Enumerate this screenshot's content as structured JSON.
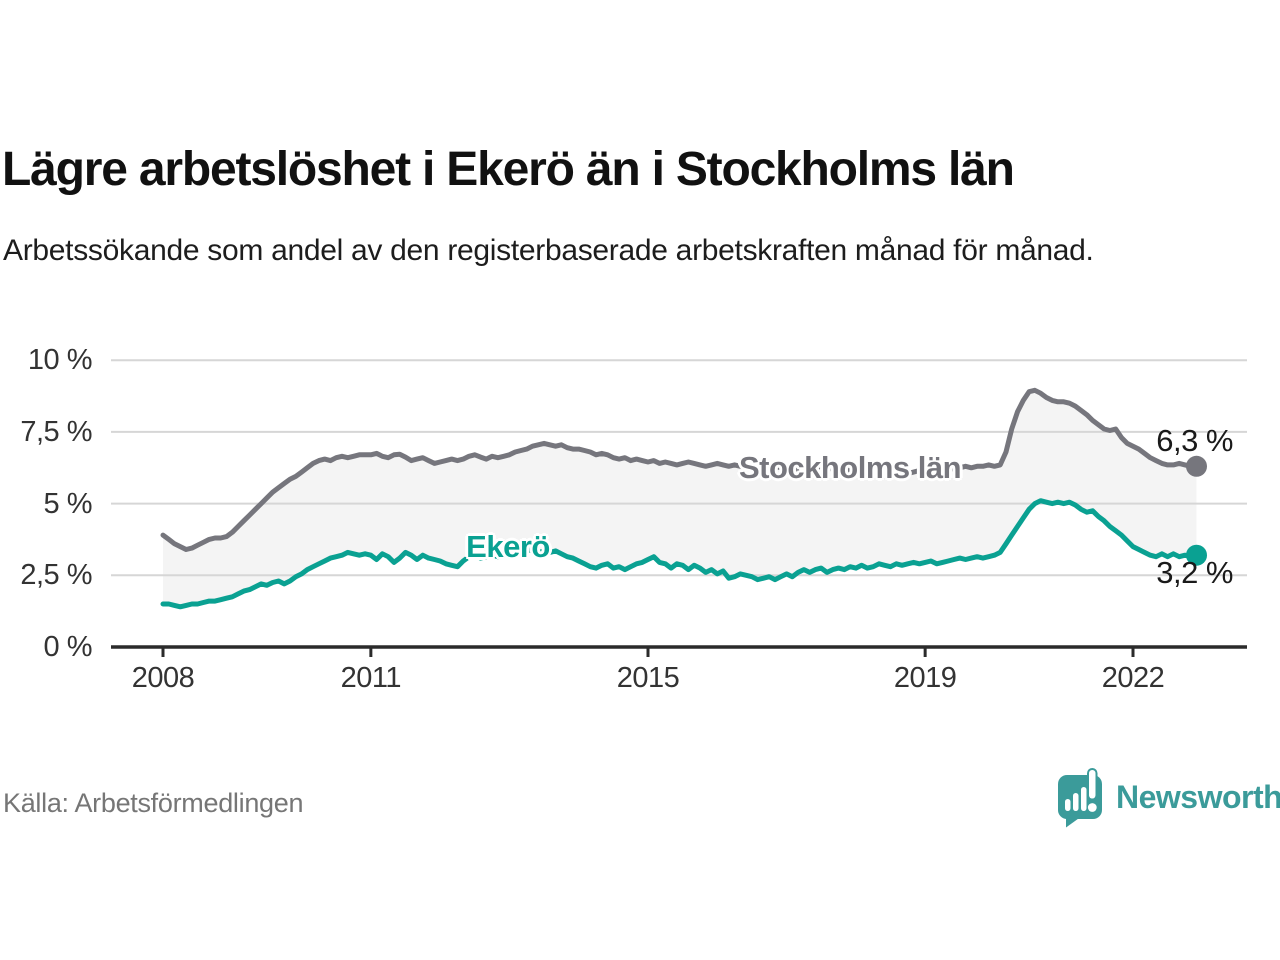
{
  "header": {
    "title": "Lägre arbetslöshet i Ekerö än i Stockholms län",
    "subtitle": "Arbetssökande som andel av den registerbaserade arbetskraften månad för månad."
  },
  "chart_data": {
    "type": "line",
    "x_unit": "month",
    "x_start": "2008-01",
    "x_end": "2022-12",
    "x_ticks": [
      2008,
      2011,
      2015,
      2019,
      2022
    ],
    "x_tick_labels": [
      "2008",
      "2011",
      "2015",
      "2019",
      "2022"
    ],
    "ylim": [
      0,
      10
    ],
    "y_ticks": [
      0,
      2.5,
      5,
      7.5,
      10
    ],
    "y_tick_labels": [
      "0 %",
      "2,5 %",
      "5 %",
      "7,5 %",
      "10 %"
    ],
    "grid": "horizontal",
    "band_between_series": true,
    "band_color": "#f4f4f4",
    "grid_color": "#d6d6d6",
    "axis_color": "#2b2b2b",
    "series": [
      {
        "name": "Stockholms län",
        "color": "#76767d",
        "end_label": "6,3 %",
        "values": [
          3.9,
          3.75,
          3.6,
          3.5,
          3.4,
          3.45,
          3.55,
          3.65,
          3.75,
          3.8,
          3.8,
          3.85,
          4.0,
          4.2,
          4.4,
          4.6,
          4.8,
          5.0,
          5.2,
          5.4,
          5.55,
          5.7,
          5.85,
          5.95,
          6.1,
          6.25,
          6.4,
          6.5,
          6.55,
          6.5,
          6.6,
          6.65,
          6.6,
          6.65,
          6.7,
          6.7,
          6.7,
          6.75,
          6.65,
          6.6,
          6.7,
          6.72,
          6.62,
          6.5,
          6.55,
          6.6,
          6.5,
          6.4,
          6.45,
          6.5,
          6.55,
          6.5,
          6.55,
          6.65,
          6.7,
          6.62,
          6.55,
          6.65,
          6.6,
          6.65,
          6.7,
          6.8,
          6.85,
          6.9,
          7.0,
          7.05,
          7.1,
          7.05,
          7.0,
          7.05,
          6.95,
          6.9,
          6.9,
          6.85,
          6.8,
          6.7,
          6.75,
          6.7,
          6.6,
          6.55,
          6.6,
          6.5,
          6.55,
          6.5,
          6.45,
          6.5,
          6.4,
          6.45,
          6.4,
          6.35,
          6.4,
          6.45,
          6.4,
          6.35,
          6.3,
          6.35,
          6.4,
          6.35,
          6.3,
          6.35,
          6.3,
          6.25,
          6.3,
          6.35,
          6.3,
          6.25,
          6.3,
          6.25,
          6.3,
          6.25,
          6.2,
          6.25,
          6.2,
          6.25,
          6.3,
          6.25,
          6.2,
          6.15,
          6.2,
          6.15,
          6.2,
          6.15,
          6.1,
          6.15,
          6.1,
          6.05,
          6.1,
          6.05,
          6.1,
          6.05,
          6.1,
          6.15,
          6.15,
          6.2,
          6.15,
          6.2,
          6.25,
          6.2,
          6.25,
          6.3,
          6.25,
          6.3,
          6.3,
          6.35,
          6.3,
          6.35,
          6.8,
          7.6,
          8.2,
          8.6,
          8.9,
          8.95,
          8.85,
          8.7,
          8.6,
          8.55,
          8.55,
          8.5,
          8.4,
          8.25,
          8.1,
          7.9,
          7.75,
          7.6,
          7.55,
          7.6,
          7.3,
          7.1,
          7.0,
          6.9,
          6.75,
          6.6,
          6.5,
          6.4,
          6.35,
          6.35,
          6.4,
          6.35,
          6.3,
          6.3
        ]
      },
      {
        "name": "Ekerö",
        "color": "#0aa192",
        "end_label": "3,2 %",
        "values": [
          1.5,
          1.5,
          1.45,
          1.4,
          1.45,
          1.5,
          1.5,
          1.55,
          1.6,
          1.6,
          1.65,
          1.7,
          1.75,
          1.85,
          1.95,
          2.0,
          2.1,
          2.2,
          2.15,
          2.25,
          2.3,
          2.2,
          2.3,
          2.45,
          2.55,
          2.7,
          2.8,
          2.9,
          3.0,
          3.1,
          3.15,
          3.2,
          3.3,
          3.25,
          3.2,
          3.25,
          3.2,
          3.05,
          3.25,
          3.15,
          2.95,
          3.1,
          3.3,
          3.2,
          3.05,
          3.2,
          3.1,
          3.05,
          3.0,
          2.9,
          2.85,
          2.8,
          3.0,
          3.15,
          3.2,
          3.1,
          3.15,
          3.2,
          3.15,
          3.2,
          3.25,
          3.3,
          3.35,
          3.4,
          3.35,
          3.3,
          3.35,
          3.3,
          3.35,
          3.25,
          3.15,
          3.1,
          3.0,
          2.9,
          2.8,
          2.75,
          2.85,
          2.9,
          2.75,
          2.8,
          2.7,
          2.8,
          2.9,
          2.95,
          3.05,
          3.15,
          2.95,
          2.9,
          2.75,
          2.9,
          2.85,
          2.7,
          2.85,
          2.75,
          2.6,
          2.7,
          2.55,
          2.65,
          2.4,
          2.45,
          2.55,
          2.5,
          2.45,
          2.35,
          2.4,
          2.45,
          2.35,
          2.45,
          2.55,
          2.45,
          2.6,
          2.7,
          2.6,
          2.7,
          2.75,
          2.6,
          2.7,
          2.75,
          2.7,
          2.8,
          2.75,
          2.85,
          2.75,
          2.8,
          2.9,
          2.85,
          2.8,
          2.9,
          2.85,
          2.9,
          2.95,
          2.9,
          2.95,
          3.0,
          2.9,
          2.95,
          3.0,
          3.05,
          3.1,
          3.05,
          3.1,
          3.15,
          3.1,
          3.15,
          3.2,
          3.3,
          3.6,
          3.9,
          4.2,
          4.5,
          4.8,
          5.0,
          5.1,
          5.05,
          5.0,
          5.05,
          5.0,
          5.05,
          4.95,
          4.8,
          4.7,
          4.75,
          4.55,
          4.4,
          4.2,
          4.05,
          3.9,
          3.7,
          3.5,
          3.4,
          3.3,
          3.2,
          3.15,
          3.25,
          3.15,
          3.25,
          3.15,
          3.2,
          3.15,
          3.2
        ]
      }
    ],
    "title": "Lägre arbetslöshet i Ekerö än i Stockholms län",
    "xlabel": "",
    "ylabel": "",
    "legend_position": "inline-labels"
  },
  "footer": {
    "source": "Källa: Arbetsförmedlingen",
    "brand": "Newsworthy"
  }
}
